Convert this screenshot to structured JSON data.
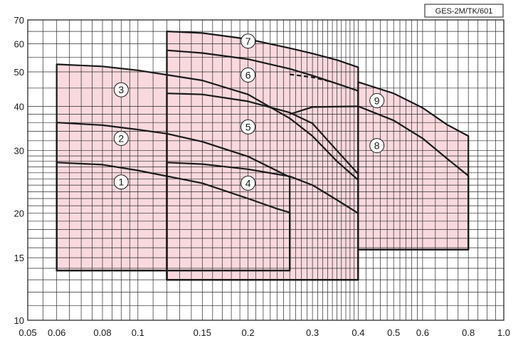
{
  "chart_data": {
    "type": "area",
    "title": "",
    "reference_code": "GES-2M/TK/601",
    "xlabel": "",
    "ylabel": "",
    "x_scale": "log",
    "y_scale": "log",
    "xlim": [
      0.05,
      1.0
    ],
    "ylim": [
      10,
      70
    ],
    "grid": true,
    "x_tick_labels": [
      {
        "value": 0.05,
        "label": "0.05"
      },
      {
        "value": 0.06,
        "label": "0.06"
      },
      {
        "value": 0.08,
        "label": "0.08"
      },
      {
        "value": 0.1,
        "label": "0.1"
      },
      {
        "value": 0.15,
        "label": "0.15"
      },
      {
        "value": 0.2,
        "label": "0.2"
      },
      {
        "value": 0.3,
        "label": "0.3"
      },
      {
        "value": 0.4,
        "label": "0.4"
      },
      {
        "value": 0.5,
        "label": "0.5"
      },
      {
        "value": 0.6,
        "label": "0.6"
      },
      {
        "value": 0.8,
        "label": "0.8"
      },
      {
        "value": 1.0,
        "label": "1.0"
      }
    ],
    "y_tick_labels": [
      {
        "value": 10,
        "label": "10"
      },
      {
        "value": 15,
        "label": "15"
      },
      {
        "value": 20,
        "label": "20"
      },
      {
        "value": 30,
        "label": "30"
      },
      {
        "value": 40,
        "label": "40"
      },
      {
        "value": 50,
        "label": "50"
      },
      {
        "value": 60,
        "label": "60"
      },
      {
        "value": 70,
        "label": "70"
      }
    ],
    "fill_color": "#f9d9de",
    "line_color": "#1a1a1a",
    "grid_color": "#2a2a2a",
    "zones": [
      {
        "label": "1",
        "label_at": [
          0.09,
          24.5
        ],
        "outline": [
          [
            0.06,
            13.8
          ],
          [
            0.06,
            27.8
          ],
          [
            0.08,
            27.4
          ],
          [
            0.1,
            26.4
          ],
          [
            0.15,
            24.3
          ],
          [
            0.2,
            22.0
          ],
          [
            0.24,
            20.6
          ],
          [
            0.26,
            20.1
          ],
          [
            0.26,
            13.8
          ]
        ]
      },
      {
        "label": "2",
        "label_at": [
          0.09,
          32.5
        ],
        "outline": [
          [
            0.06,
            13.8
          ],
          [
            0.06,
            36.0
          ],
          [
            0.08,
            35.4
          ],
          [
            0.1,
            34.4
          ],
          [
            0.12,
            33.5
          ],
          [
            0.15,
            31.8
          ],
          [
            0.2,
            28.9
          ],
          [
            0.25,
            25.8
          ],
          [
            0.26,
            25.3
          ],
          [
            0.26,
            13.8
          ]
        ]
      },
      {
        "label": "3",
        "label_at": [
          0.09,
          44.5
        ],
        "outline": [
          [
            0.06,
            13.8
          ],
          [
            0.06,
            52.5
          ],
          [
            0.08,
            51.8
          ],
          [
            0.1,
            50.5
          ],
          [
            0.15,
            47.3
          ],
          [
            0.2,
            43.2
          ],
          [
            0.26,
            37.0
          ],
          [
            0.3,
            33.0
          ],
          [
            0.35,
            28.0
          ],
          [
            0.4,
            24.8
          ],
          [
            0.4,
            13.0
          ],
          [
            0.12,
            13.0
          ],
          [
            0.12,
            13.8
          ]
        ]
      },
      {
        "label": "4",
        "label_at": [
          0.2,
          24.3
        ],
        "outline": [
          [
            0.12,
            13.0
          ],
          [
            0.12,
            27.8
          ],
          [
            0.15,
            27.5
          ],
          [
            0.2,
            26.6
          ],
          [
            0.26,
            25.4
          ],
          [
            0.3,
            24.0
          ],
          [
            0.35,
            21.8
          ],
          [
            0.4,
            20.0
          ],
          [
            0.4,
            13.0
          ]
        ]
      },
      {
        "label": "5",
        "label_at": [
          0.2,
          35.0
        ],
        "outline": [
          [
            0.12,
            13.0
          ],
          [
            0.12,
            43.5
          ],
          [
            0.15,
            43.2
          ],
          [
            0.2,
            41.3
          ],
          [
            0.26,
            38.4
          ],
          [
            0.3,
            35.8
          ],
          [
            0.35,
            30.0
          ],
          [
            0.4,
            25.8
          ],
          [
            0.4,
            13.0
          ]
        ]
      },
      {
        "label": "6",
        "label_at": [
          0.2,
          49.0
        ],
        "outline": [
          [
            0.12,
            13.0
          ],
          [
            0.12,
            57.5
          ],
          [
            0.15,
            56.5
          ],
          [
            0.2,
            54.3
          ],
          [
            0.26,
            51.0
          ],
          [
            0.3,
            48.8
          ],
          [
            0.35,
            46.3
          ],
          [
            0.4,
            44.2
          ],
          [
            0.4,
            13.0
          ]
        ]
      },
      {
        "label": "7",
        "label_at": [
          0.2,
          61.0
        ],
        "outline": [
          [
            0.12,
            13.0
          ],
          [
            0.12,
            65.0
          ],
          [
            0.15,
            64.3
          ],
          [
            0.2,
            61.8
          ],
          [
            0.26,
            58.3
          ],
          [
            0.3,
            56.3
          ],
          [
            0.35,
            54.0
          ],
          [
            0.4,
            51.5
          ],
          [
            0.4,
            13.0
          ]
        ]
      },
      {
        "label": "8",
        "label_at": [
          0.45,
          31.0
        ],
        "outline": [
          [
            0.4,
            15.8
          ],
          [
            0.4,
            40.0
          ],
          [
            0.5,
            36.5
          ],
          [
            0.6,
            32.5
          ],
          [
            0.7,
            28.5
          ],
          [
            0.8,
            25.5
          ],
          [
            0.8,
            15.8
          ]
        ]
      },
      {
        "label": "9",
        "label_at": [
          0.45,
          41.5
        ],
        "outline": [
          [
            0.4,
            15.8
          ],
          [
            0.4,
            46.8
          ],
          [
            0.5,
            43.5
          ],
          [
            0.6,
            39.6
          ],
          [
            0.7,
            35.5
          ],
          [
            0.8,
            33.0
          ],
          [
            0.8,
            15.8
          ]
        ]
      }
    ],
    "extra_lines": [
      {
        "style": "solid",
        "points": [
          [
            0.26,
            13.8
          ],
          [
            0.26,
            20.1
          ]
        ]
      },
      {
        "style": "solid",
        "points": [
          [
            0.12,
            13.8
          ],
          [
            0.12,
            33.5
          ]
        ]
      },
      {
        "style": "solid",
        "points": [
          [
            0.26,
            38.0
          ],
          [
            0.3,
            39.8
          ],
          [
            0.4,
            40.0
          ]
        ]
      },
      {
        "style": "dashed",
        "points": [
          [
            0.26,
            49.2
          ],
          [
            0.3,
            48.3
          ],
          [
            0.34,
            46.8
          ]
        ]
      }
    ]
  }
}
